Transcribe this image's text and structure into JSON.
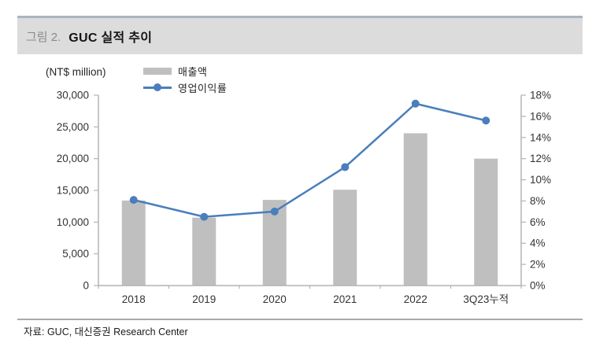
{
  "figure": {
    "label": "그림 2.",
    "title": "GUC 실적 추이"
  },
  "chart_data": {
    "type": "bar+line",
    "categories": [
      "2018",
      "2019",
      "2020",
      "2021",
      "2022",
      "3Q23누적"
    ],
    "series": [
      {
        "name": "매출액",
        "type": "bar",
        "axis": "left",
        "color": "#bfbfbf",
        "values": [
          13400,
          10700,
          13500,
          15100,
          24000,
          20000
        ]
      },
      {
        "name": "영업이익률",
        "type": "line",
        "axis": "right",
        "color": "#4a7ebc",
        "values": [
          8.1,
          6.5,
          7.0,
          11.2,
          17.2,
          15.6
        ]
      }
    ],
    "left_axis": {
      "label": "(NT$ million)",
      "min": 0,
      "max": 30000,
      "step": 5000
    },
    "right_axis": {
      "min": 0,
      "max": 18,
      "step": 2,
      "suffix": "%"
    },
    "grid": "off",
    "legend_position": "top-left",
    "axis_color": "#b3b3b3",
    "tick_label_color": "#333333"
  },
  "footer": {
    "source": "자료: GUC, 대신증권 Research Center"
  }
}
